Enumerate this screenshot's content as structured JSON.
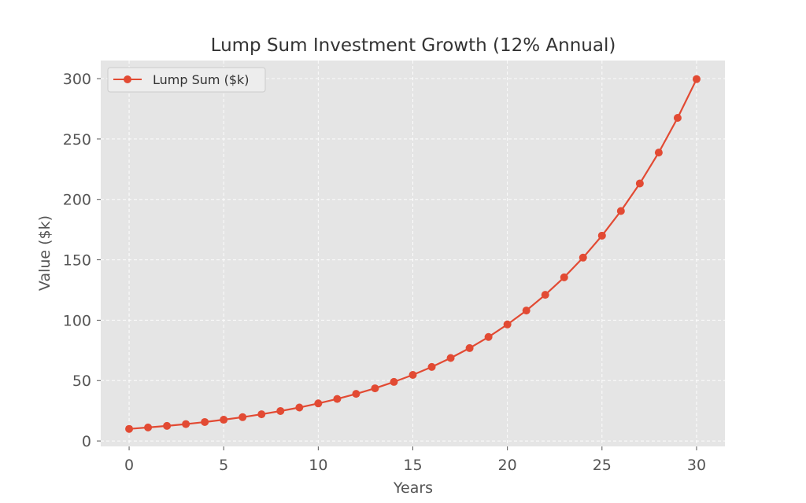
{
  "chart_data": {
    "type": "line",
    "title": "Lump Sum Investment Growth (12% Annual)",
    "xlabel": "Years",
    "ylabel": "Value ($k)",
    "xlim": [
      -1.5,
      31.5
    ],
    "ylim": [
      -4.5,
      315
    ],
    "xticks": [
      0,
      5,
      10,
      15,
      20,
      25,
      30
    ],
    "yticks": [
      0,
      50,
      100,
      150,
      200,
      250,
      300
    ],
    "grid": true,
    "legend_position": "top-left",
    "series": [
      {
        "name": "Lump Sum ($k)",
        "color": "#E24A33",
        "marker": "circle",
        "x": [
          0,
          1,
          2,
          3,
          4,
          5,
          6,
          7,
          8,
          9,
          10,
          11,
          12,
          13,
          14,
          15,
          16,
          17,
          18,
          19,
          20,
          21,
          22,
          23,
          24,
          25,
          26,
          27,
          28,
          29,
          30
        ],
        "values": [
          10.0,
          11.2,
          12.5,
          14.0,
          15.7,
          17.6,
          19.7,
          22.1,
          24.8,
          27.7,
          31.1,
          34.8,
          39.0,
          43.6,
          48.9,
          54.7,
          61.3,
          68.7,
          76.9,
          86.1,
          96.5,
          108.0,
          121.0,
          135.5,
          151.8,
          170.0,
          190.4,
          213.2,
          238.8,
          267.5,
          299.6
        ]
      }
    ]
  },
  "style": {
    "plot_background": "#E5E5E5",
    "grid_color": "#FFFFFF",
    "text_color": "#555555"
  }
}
